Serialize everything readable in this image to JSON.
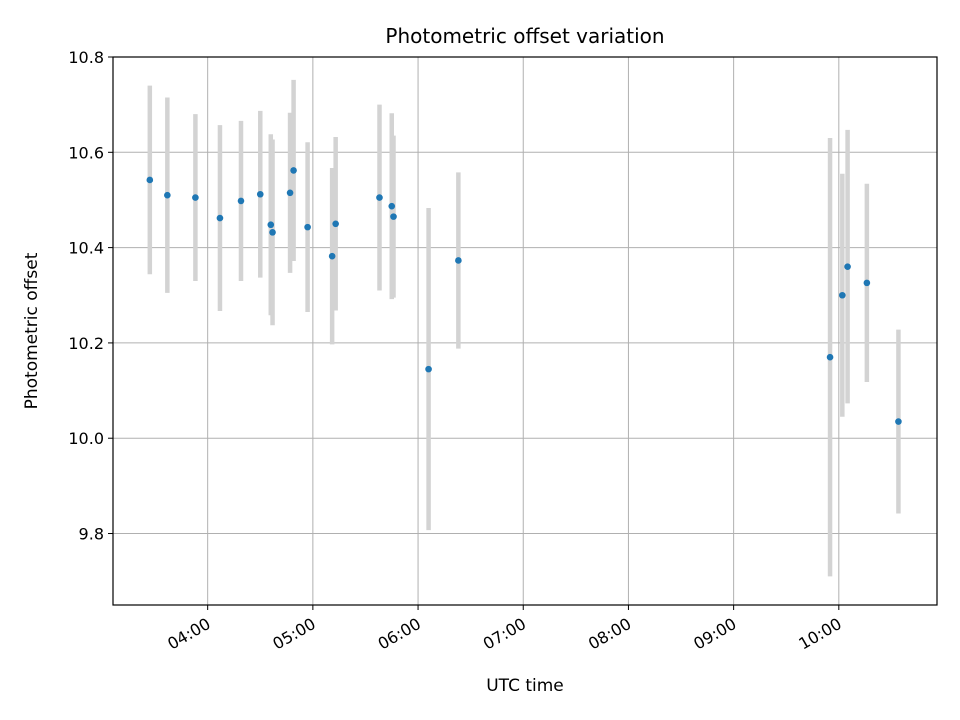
{
  "chart_data": {
    "type": "scatter",
    "title": "Photometric offset variation",
    "xlabel": "UTC time",
    "ylabel": "Photometric offset",
    "x_tick_labels": [
      "04:00",
      "05:00",
      "06:00",
      "07:00",
      "08:00",
      "09:00",
      "10:00"
    ],
    "y_tick_labels": [
      "9.8",
      "10.0",
      "10.2",
      "10.4",
      "10.6",
      "10.8"
    ],
    "xlim": [
      "03:06",
      "10:56"
    ],
    "ylim": [
      9.65,
      10.8
    ],
    "x_ticks": [
      "04:00",
      "05:00",
      "06:00",
      "07:00",
      "08:00",
      "09:00",
      "10:00"
    ],
    "y_ticks": [
      9.8,
      10.0,
      10.2,
      10.4,
      10.6,
      10.8
    ],
    "grid": true,
    "point_color": "#1f77b4",
    "errorbar_color": "#d3d3d3",
    "points": [
      {
        "x": "03:27",
        "y": 10.542,
        "err": 0.198
      },
      {
        "x": "03:37",
        "y": 10.51,
        "err": 0.205
      },
      {
        "x": "03:53",
        "y": 10.505,
        "err": 0.175
      },
      {
        "x": "04:07",
        "y": 10.462,
        "err": 0.195
      },
      {
        "x": "04:19",
        "y": 10.498,
        "err": 0.168
      },
      {
        "x": "04:30",
        "y": 10.512,
        "err": 0.175
      },
      {
        "x": "04:36",
        "y": 10.448,
        "err": 0.19
      },
      {
        "x": "04:37",
        "y": 10.432,
        "err": 0.195
      },
      {
        "x": "04:47",
        "y": 10.515,
        "err": 0.168
      },
      {
        "x": "04:49",
        "y": 10.562,
        "err": 0.19
      },
      {
        "x": "04:57",
        "y": 10.443,
        "err": 0.178
      },
      {
        "x": "05:11",
        "y": 10.382,
        "err": 0.185
      },
      {
        "x": "05:13",
        "y": 10.45,
        "err": 0.182
      },
      {
        "x": "05:38",
        "y": 10.505,
        "err": 0.195
      },
      {
        "x": "05:45",
        "y": 10.487,
        "err": 0.195
      },
      {
        "x": "05:46",
        "y": 10.465,
        "err": 0.17
      },
      {
        "x": "06:06",
        "y": 10.145,
        "err": 0.338
      },
      {
        "x": "06:23",
        "y": 10.373,
        "err": 0.185
      },
      {
        "x": "09:55",
        "y": 10.17,
        "err": 0.46
      },
      {
        "x": "10:02",
        "y": 10.3,
        "err": 0.255
      },
      {
        "x": "10:05",
        "y": 10.36,
        "err": 0.287
      },
      {
        "x": "10:16",
        "y": 10.326,
        "err": 0.208
      },
      {
        "x": "10:34",
        "y": 10.035,
        "err": 0.193
      }
    ]
  }
}
